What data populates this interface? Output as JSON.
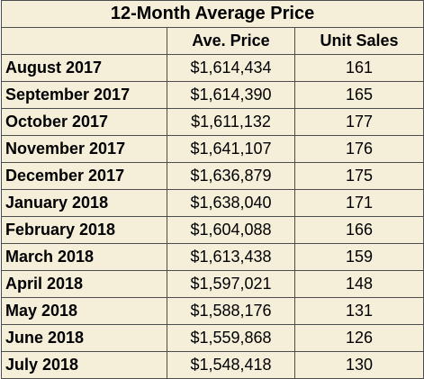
{
  "chart_data": {
    "type": "table",
    "title": "12-Month Average Price",
    "columns": [
      "",
      "Ave. Price",
      "Unit Sales"
    ],
    "rows": [
      {
        "month": "August 2017",
        "price": "$1,614,434",
        "sales": "161"
      },
      {
        "month": "September 2017",
        "price": "$1,614,390",
        "sales": "165"
      },
      {
        "month": "October 2017",
        "price": "$1,611,132",
        "sales": "177"
      },
      {
        "month": "November 2017",
        "price": "$1,641,107",
        "sales": "176"
      },
      {
        "month": "December 2017",
        "price": "$1,636,879",
        "sales": "175"
      },
      {
        "month": "January 2018",
        "price": "$1,638,040",
        "sales": "171"
      },
      {
        "month": "February 2018",
        "price": "$1,604,088",
        "sales": "166"
      },
      {
        "month": "March 2018",
        "price": "$1,613,438",
        "sales": "159"
      },
      {
        "month": "April 2018",
        "price": "$1,597,021",
        "sales": "148"
      },
      {
        "month": "May 2018",
        "price": "$1,588,176",
        "sales": "131"
      },
      {
        "month": "June 2018",
        "price": "$1,559,868",
        "sales": "126"
      },
      {
        "month": "July 2018",
        "price": "$1,548,418",
        "sales": "130"
      }
    ]
  },
  "colors": {
    "cell_background": "#f5eed9",
    "border": "#4d4d4d",
    "text": "#000000"
  }
}
